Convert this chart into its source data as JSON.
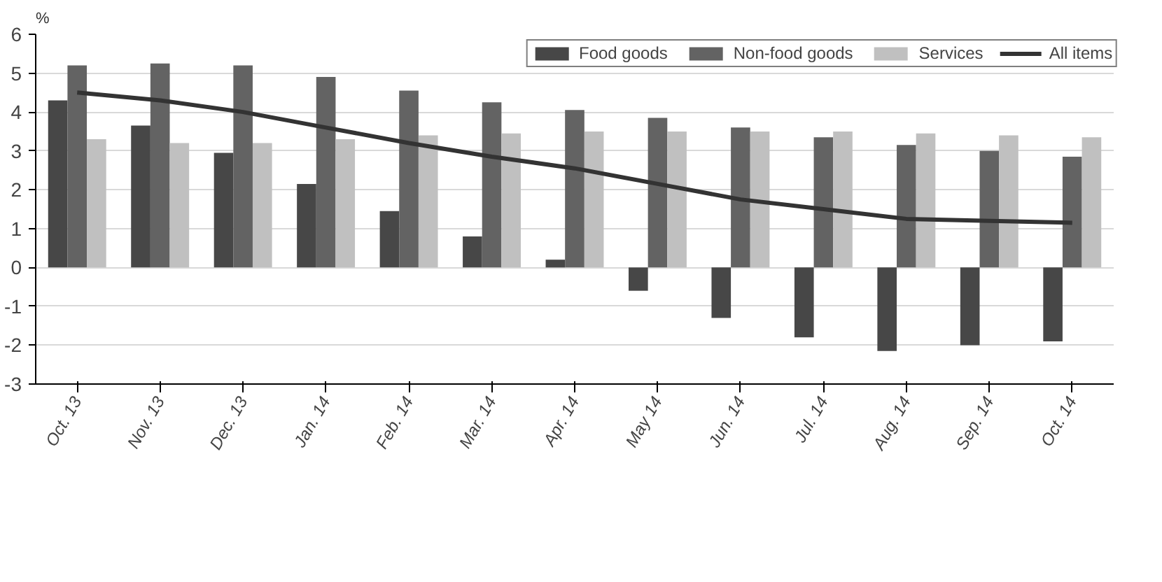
{
  "chart_data": {
    "type": "bar",
    "ylabel": "%",
    "categories": [
      "Oct. 13",
      "Nov. 13",
      "Dec. 13",
      "Jan. 14",
      "Feb. 14",
      "Mar. 14",
      "Apr. 14",
      "May 14",
      "Jun. 14",
      "Jul. 14",
      "Aug. 14",
      "Sep. 14",
      "Oct. 14"
    ],
    "series": [
      {
        "name": "Food goods",
        "color": "#474747",
        "values": [
          4.3,
          3.65,
          2.95,
          2.15,
          1.45,
          0.8,
          0.2,
          -0.6,
          -1.3,
          -1.8,
          -2.15,
          -2.0,
          -1.9
        ]
      },
      {
        "name": "Non-food goods",
        "color": "#636363",
        "values": [
          5.2,
          5.25,
          5.2,
          4.9,
          4.55,
          4.25,
          4.05,
          3.85,
          3.6,
          3.35,
          3.15,
          3.0,
          2.85
        ]
      },
      {
        "name": "Services",
        "color": "#c0c0c0",
        "values": [
          3.3,
          3.2,
          3.2,
          3.3,
          3.4,
          3.45,
          3.5,
          3.5,
          3.5,
          3.5,
          3.45,
          3.4,
          3.35
        ]
      },
      {
        "name": "All items",
        "type": "line",
        "color": "#333333",
        "values": [
          4.5,
          4.3,
          4.0,
          3.6,
          3.2,
          2.85,
          2.55,
          2.15,
          1.75,
          1.5,
          1.25,
          1.2,
          1.15
        ]
      }
    ],
    "ylim": [
      -3,
      6
    ],
    "yticks": [
      -3,
      -2,
      -1,
      0,
      1,
      2,
      3,
      4,
      5,
      6
    ],
    "grid": "y",
    "legend": "top right"
  }
}
